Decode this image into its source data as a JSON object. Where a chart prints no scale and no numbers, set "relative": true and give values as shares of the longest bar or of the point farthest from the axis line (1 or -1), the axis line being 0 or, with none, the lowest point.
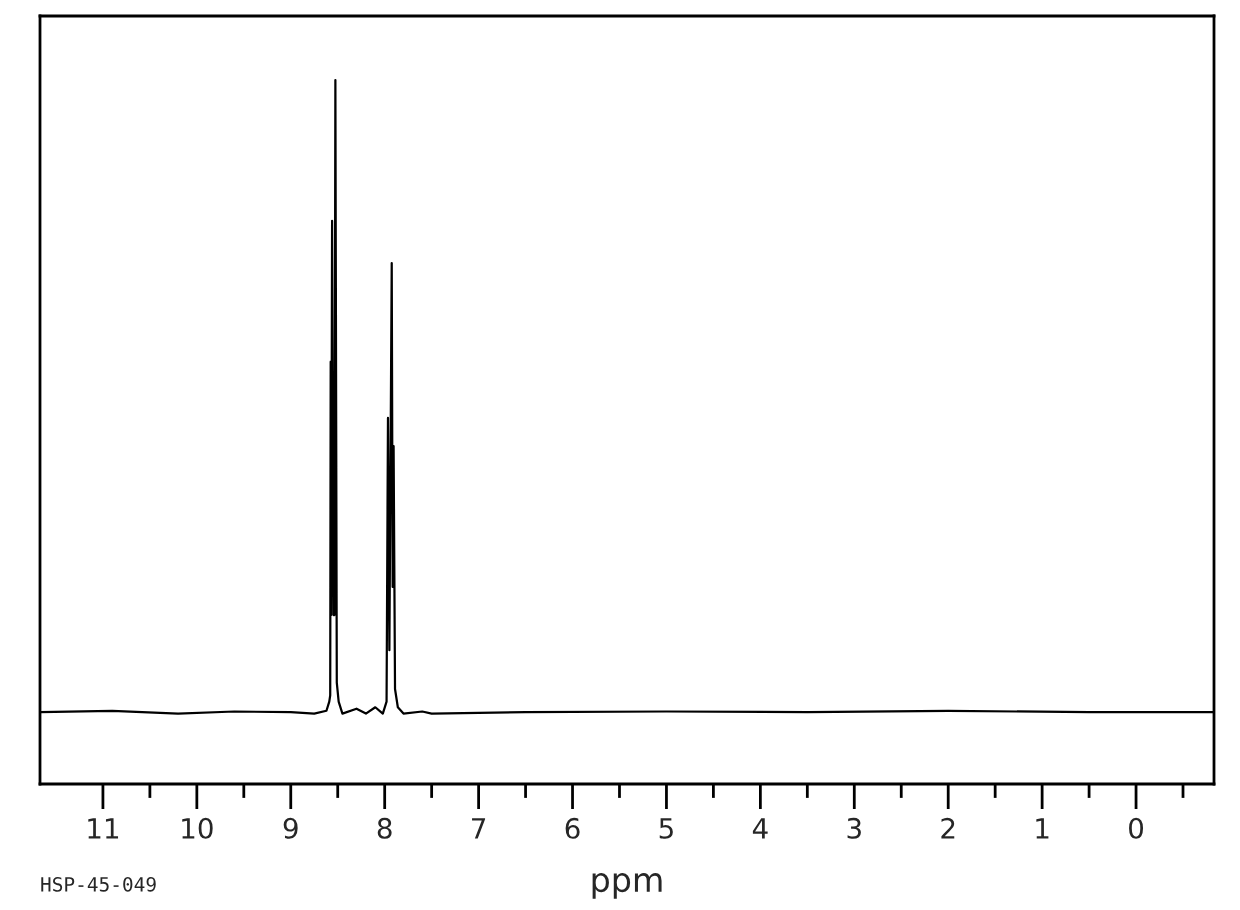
{
  "chart_data": {
    "type": "line",
    "relative": true,
    "xlabel": "ppm",
    "annotations": [
      "HSP-45-049"
    ],
    "xlim": [
      11.67,
      -0.83
    ],
    "xticks": [
      11,
      {
        "value": 10.5,
        "label": null
      },
      10,
      {
        "value": 9.5,
        "label": null
      },
      9,
      {
        "value": 8.5,
        "label": null
      },
      8,
      {
        "value": 7.5,
        "label": null
      },
      7,
      {
        "value": 6.5,
        "label": null
      },
      6,
      {
        "value": 5.5,
        "label": null
      },
      5,
      {
        "value": 4.5,
        "label": null
      },
      4,
      {
        "value": 3.5,
        "label": null
      },
      3,
      {
        "value": 2.5,
        "label": null
      },
      2,
      {
        "value": 1.5,
        "label": null
      },
      1,
      {
        "value": 0.5,
        "label": null
      },
      0,
      {
        "value": -0.5,
        "label": null
      }
    ],
    "tick_labels": "x",
    "series": [
      {
        "color": "#000000",
        "x": [
          11.67,
          10.9,
          10.2,
          9.6,
          9.0,
          8.75,
          8.62,
          8.59,
          8.58,
          8.575,
          8.57,
          8.56,
          8.545,
          8.535,
          8.525,
          8.51,
          8.49,
          8.45,
          8.3,
          8.2,
          8.1,
          8.02,
          7.98,
          7.965,
          7.95,
          7.925,
          7.915,
          7.905,
          7.89,
          7.86,
          7.8,
          7.6,
          7.5,
          6.5,
          5.0,
          3.5,
          2.0,
          0.5,
          -0.83
        ],
        "values": [
          0.102,
          0.104,
          0.1,
          0.103,
          0.102,
          0.1,
          0.104,
          0.117,
          0.126,
          0.6,
          0.24,
          0.8,
          0.24,
          0.24,
          1.0,
          0.144,
          0.117,
          0.1,
          0.107,
          0.1,
          0.109,
          0.1,
          0.117,
          0.52,
          0.19,
          0.74,
          0.28,
          0.48,
          0.135,
          0.109,
          0.1,
          0.103,
          0.1,
          0.102,
          0.103,
          0.102,
          0.104,
          0.102,
          0.102
        ]
      }
    ]
  }
}
